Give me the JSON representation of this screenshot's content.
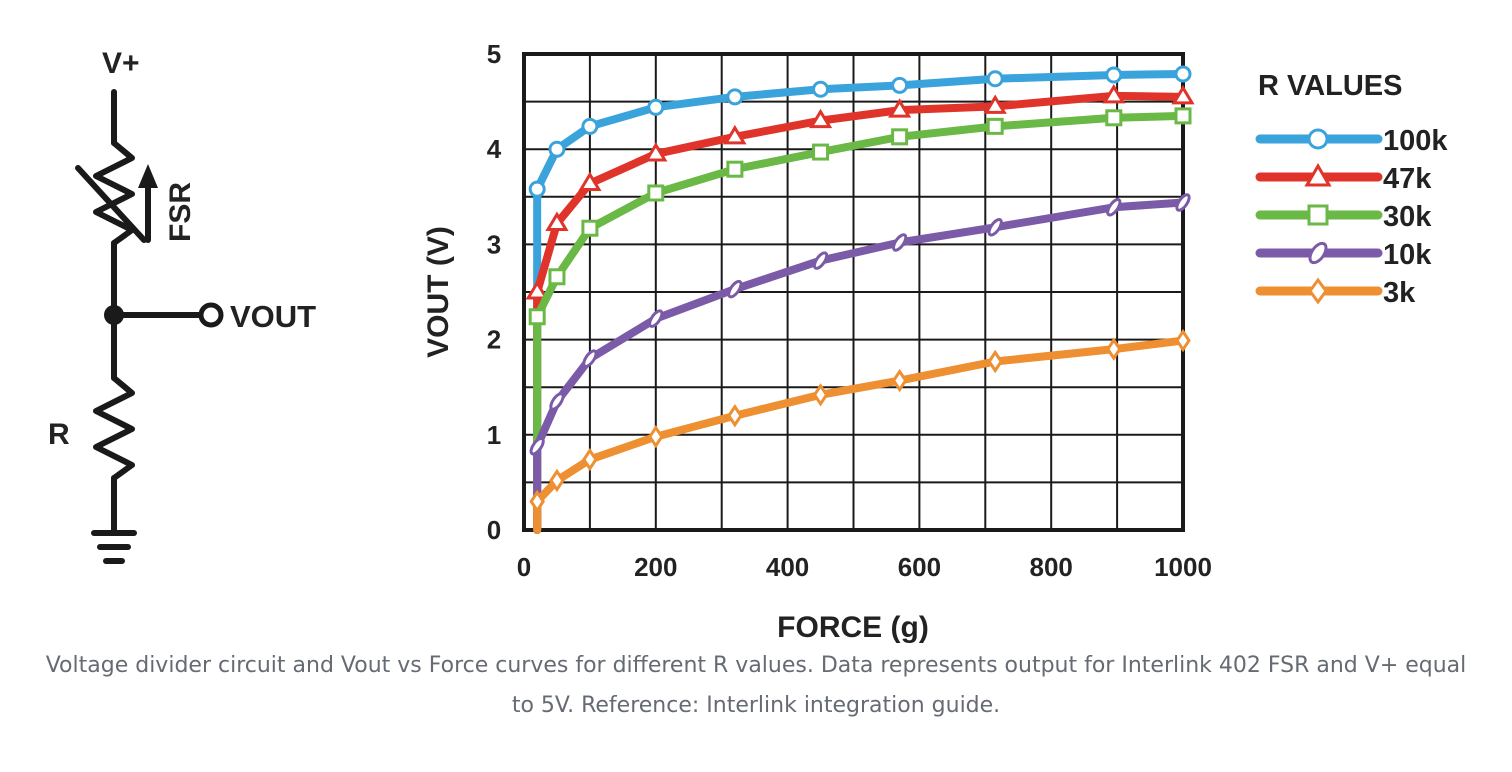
{
  "circuit": {
    "vplus_label": "V+",
    "fsr_label": "FSR",
    "vout_label": "VOUT",
    "r_label": "R"
  },
  "chart_data": {
    "type": "line",
    "title": "",
    "xlabel": "FORCE (g)",
    "ylabel": "VOUT (V)",
    "xlim": [
      0,
      1000
    ],
    "ylim": [
      0,
      5
    ],
    "xticks": [
      0,
      200,
      400,
      600,
      800,
      1000
    ],
    "yticks": [
      0,
      1,
      2,
      3,
      4,
      5
    ],
    "grid": true,
    "legend": {
      "title": "R VALUES",
      "placement": "right"
    },
    "series": [
      {
        "name": "100k",
        "color": "#3aa3dc",
        "marker": "circle",
        "x": [
          20,
          50,
          100,
          200,
          320,
          450,
          570,
          715,
          895,
          1000
        ],
        "y": [
          3.58,
          4.0,
          4.24,
          4.44,
          4.55,
          4.63,
          4.67,
          4.74,
          4.78,
          4.79
        ]
      },
      {
        "name": "47k",
        "color": "#e0342b",
        "marker": "triangle",
        "x": [
          20,
          50,
          100,
          200,
          320,
          450,
          570,
          715,
          895,
          1000
        ],
        "y": [
          2.5,
          3.22,
          3.64,
          3.95,
          4.13,
          4.3,
          4.41,
          4.45,
          4.56,
          4.55
        ]
      },
      {
        "name": "30k",
        "color": "#6ab845",
        "marker": "square",
        "x": [
          20,
          50,
          100,
          200,
          320,
          450,
          570,
          715,
          895,
          1000
        ],
        "y": [
          2.24,
          2.66,
          3.17,
          3.54,
          3.79,
          3.97,
          4.13,
          4.24,
          4.33,
          4.35
        ]
      },
      {
        "name": "10k",
        "color": "#7b5ba8",
        "marker": "oval",
        "x": [
          20,
          50,
          100,
          200,
          320,
          450,
          570,
          715,
          895,
          1000
        ],
        "y": [
          0.88,
          1.35,
          1.8,
          2.22,
          2.53,
          2.83,
          3.02,
          3.18,
          3.39,
          3.44
        ]
      },
      {
        "name": "3k",
        "color": "#ee8f31",
        "marker": "diamond",
        "x": [
          20,
          50,
          100,
          200,
          320,
          450,
          570,
          715,
          895,
          1000
        ],
        "y": [
          0.3,
          0.52,
          0.74,
          0.98,
          1.2,
          1.42,
          1.57,
          1.77,
          1.9,
          1.99
        ]
      }
    ]
  },
  "caption": "Voltage divider circuit and Vout vs Force curves for different R values. Data represents output for Interlink 402 FSR and V+ equal to 5V. Reference: Interlink integration guide."
}
